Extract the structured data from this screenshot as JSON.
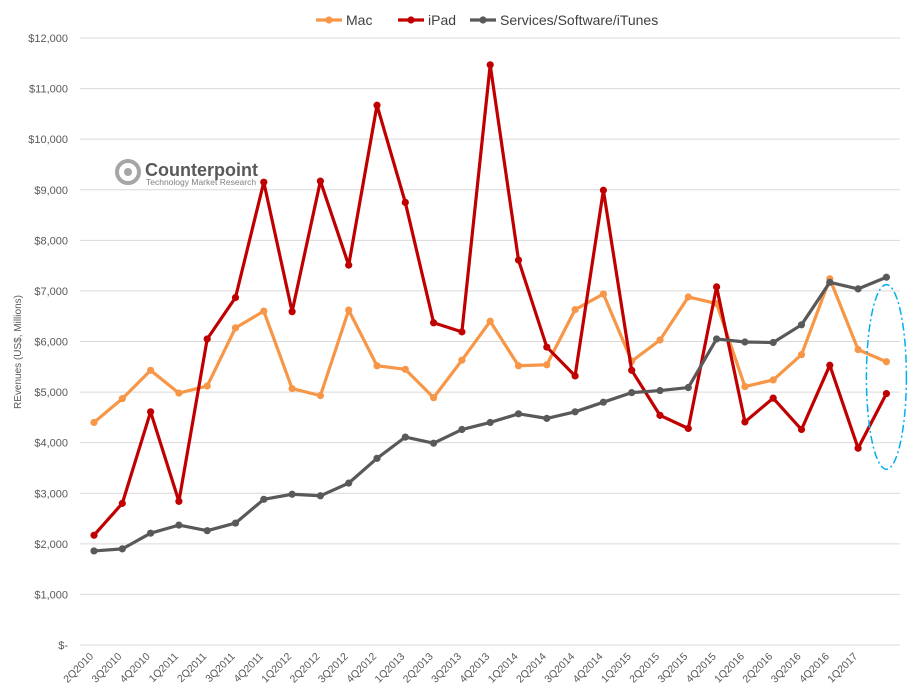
{
  "logo": {
    "name": "Counterpoint",
    "tagline": "Technology Market Research"
  },
  "chart_data": {
    "type": "line",
    "title": "",
    "xlabel": "",
    "ylabel": "REvenues (US$, Millions)",
    "ylim": [
      0,
      12000
    ],
    "y_tick_labels": [
      "$-",
      "$1,000",
      "$2,000",
      "$3,000",
      "$4,000",
      "$5,000",
      "$6,000",
      "$7,000",
      "$8,000",
      "$9,000",
      "$10,000",
      "$11,000",
      "$12,000"
    ],
    "grid": "horizontal",
    "legend_position": "top-center",
    "categories": [
      "2Q2010",
      "3Q2010",
      "4Q2010",
      "1Q2011",
      "2Q2011",
      "3Q2011",
      "4Q2011",
      "1Q2012",
      "2Q2012",
      "3Q2012",
      "4Q2012",
      "1Q2013",
      "2Q2013",
      "3Q2013",
      "4Q2013",
      "1Q2014",
      "2Q2014",
      "3Q2014",
      "4Q2014",
      "1Q2015",
      "2Q2015",
      "3Q2015",
      "4Q2015",
      "1Q2016",
      "2Q2016",
      "3Q2016",
      "4Q2016",
      "1Q2017",
      ""
    ],
    "series": [
      {
        "name": "Mac",
        "color": "#f79646",
        "values": [
          4400,
          4870,
          5430,
          4980,
          5120,
          6270,
          6600,
          5070,
          4930,
          6620,
          5520,
          5450,
          4890,
          5630,
          6400,
          5520,
          5540,
          6630,
          6940,
          5610,
          6030,
          6880,
          6750,
          5110,
          5240,
          5740,
          7240,
          5840,
          5600
        ]
      },
      {
        "name": "iPad",
        "color": "#c00000",
        "values": [
          2170,
          2800,
          4610,
          2840,
          6050,
          6870,
          9150,
          6590,
          9170,
          7510,
          10670,
          8750,
          6370,
          6190,
          11470,
          7610,
          5890,
          5320,
          8990,
          5430,
          4540,
          4280,
          7080,
          4410,
          4880,
          4260,
          5530,
          3890,
          4970
        ]
      },
      {
        "name": "Services/Software/iTunes",
        "color": "#595959",
        "values": [
          1860,
          1900,
          2210,
          2370,
          2260,
          2410,
          2880,
          2980,
          2950,
          3200,
          3690,
          4110,
          3990,
          4260,
          4400,
          4570,
          4480,
          4610,
          4800,
          4990,
          5030,
          5090,
          6050,
          5990,
          5980,
          6330,
          7170,
          7040,
          7270
        ]
      }
    ],
    "annotation": {
      "type": "dashed-ellipse",
      "color": "#00b0f0",
      "encloses_category_index": 28
    }
  }
}
